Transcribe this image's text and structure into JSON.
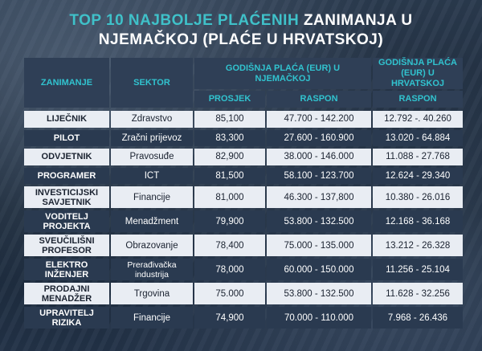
{
  "title": {
    "part1": "TOP 10 NAJBOLJE PLAĆENIH",
    "part2": "ZANIMANJA U",
    "part3": "NJEMAČKOJ (PLAĆE U HRVATSKOJ)"
  },
  "headers": {
    "occupation": "ZANIMANJE",
    "sector": "SEKTOR",
    "salary_de": "GODIŠNJA PLAĆA (EUR) U NJEMAČKOJ",
    "average": "PROSJEK",
    "range_de": "RASPON",
    "salary_hr": "GODIŠNJA PLAĆA (EUR) U HRVATSKOJ",
    "range_hr": "RASPON"
  },
  "rows": [
    {
      "occupation": "LIJEČNIK",
      "sector": "Zdravstvo",
      "average": "85,100",
      "range_de": "47.700 - 142.200",
      "range_hr": "12.792 -. 40.260"
    },
    {
      "occupation": "PILOT",
      "sector": "Zračni prijevoz",
      "average": "83,300",
      "range_de": "27.600 - 160.900",
      "range_hr": "13.020 - 64.884"
    },
    {
      "occupation": "ODVJETNIK",
      "sector": "Pravosuđe",
      "average": "82,900",
      "range_de": "38.000 - 146.000",
      "range_hr": "11.088 - 27.768"
    },
    {
      "occupation": "PROGRAMER",
      "sector": "ICT",
      "average": "81,500",
      "range_de": "58.100 - 123.700",
      "range_hr": "12.624 - 29.340"
    },
    {
      "occupation": "INVESTICIJSKI SAVJETNIK",
      "sector": "Financije",
      "average": "81,000",
      "range_de": "46.300 - 137,800",
      "range_hr": "10.380 - 26.016"
    },
    {
      "occupation": "VODITELJ PROJEKTA",
      "sector": "Menadžment",
      "average": "79,900",
      "range_de": "53.800 - 132.500",
      "range_hr": "12.168 - 36.168"
    },
    {
      "occupation": "SVEUČILIŠNI PROFESOR",
      "sector": "Obrazovanje",
      "average": "78,400",
      "range_de": "75.000 - 135.000",
      "range_hr": "13.212 - 26.328"
    },
    {
      "occupation": "ELEKTRO INŽENJER",
      "sector": "Prerađivačka industrija",
      "average": "78,000",
      "range_de": "60.000 - 150.000",
      "range_hr": "11.256 - 25.104"
    },
    {
      "occupation": "PRODAJNI MENADŽER",
      "sector": "Trgovina",
      "average": "75.000",
      "range_de": "53.800 - 132.500",
      "range_hr": "11.628 - 32.256"
    },
    {
      "occupation": "UPRAVITELJ RIZIKA",
      "sector": "Financije",
      "average": "74,900",
      "range_de": "70.000 - 110.000",
      "range_hr": "7.968 - 26.436"
    }
  ]
}
